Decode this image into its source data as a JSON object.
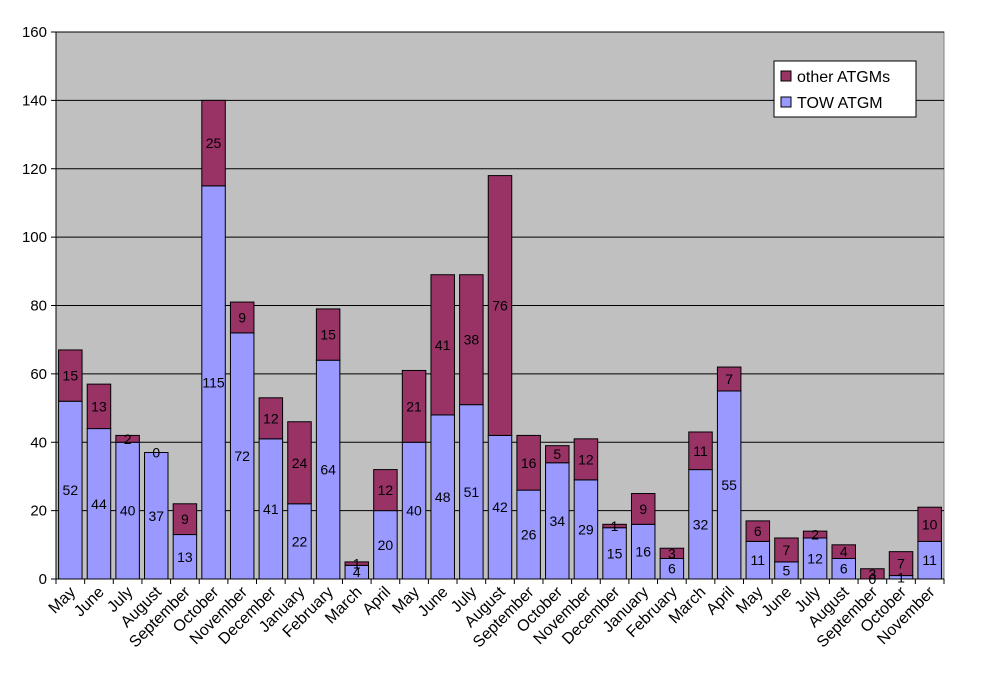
{
  "chart_data": {
    "type": "bar",
    "stacked": true,
    "categories": [
      "May",
      "June",
      "July",
      "August",
      "September",
      "October",
      "November",
      "December",
      "January",
      "February",
      "March",
      "April",
      "May",
      "June",
      "July",
      "August",
      "September",
      "October",
      "November",
      "December",
      "January",
      "February",
      "March",
      "April",
      "May",
      "June",
      "July",
      "August",
      "September",
      "October",
      "November"
    ],
    "series": [
      {
        "name": "TOW ATGM",
        "color": "#9999ff",
        "values": [
          52,
          44,
          40,
          37,
          13,
          115,
          72,
          41,
          22,
          64,
          4,
          20,
          40,
          48,
          51,
          42,
          26,
          34,
          29,
          15,
          16,
          6,
          32,
          55,
          11,
          5,
          12,
          6,
          0,
          1,
          11
        ]
      },
      {
        "name": "other ATGMs",
        "color": "#993366",
        "values": [
          15,
          13,
          2,
          0,
          9,
          25,
          9,
          12,
          24,
          15,
          1,
          12,
          21,
          41,
          38,
          76,
          16,
          5,
          12,
          1,
          9,
          3,
          11,
          7,
          6,
          7,
          2,
          4,
          3,
          7,
          10
        ]
      }
    ],
    "ylim": [
      0,
      160
    ],
    "yticks": [
      0,
      20,
      40,
      60,
      80,
      100,
      120,
      140,
      160
    ],
    "plot_background": "#c0c0c0",
    "grid": true,
    "legend_position": "top-right",
    "legend_order": [
      "other ATGMs",
      "TOW ATGM"
    ]
  }
}
